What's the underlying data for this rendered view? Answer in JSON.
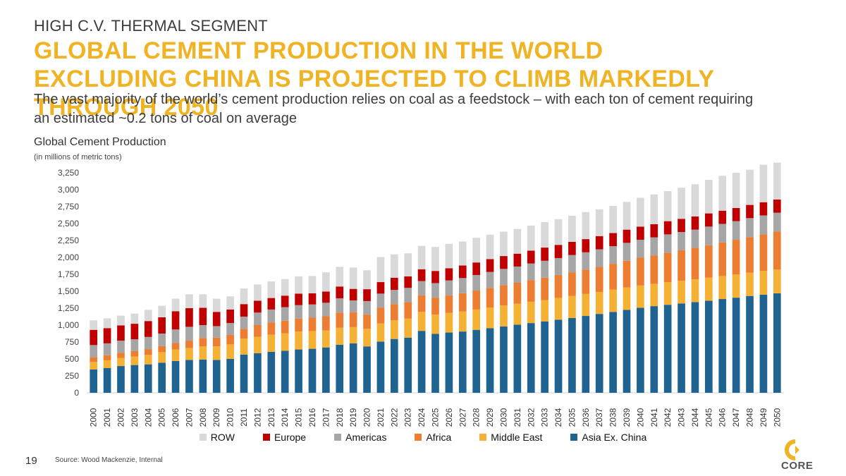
{
  "header": {
    "kicker": "HIGH C.V. THERMAL SEGMENT",
    "headline": "GLOBAL CEMENT PRODUCTION IN THE WORLD EXCLUDING CHINA IS PROJECTED TO CLIMB MARKEDLY THROUGH 2050",
    "subtitle": "The vast majority of the world’s cement production relies on coal as a feedstock – with each ton of cement requiring an estimated ~0.2 tons of coal on average"
  },
  "footer": {
    "page_number": "19",
    "source": "Source: Wood Mackenzie, Internal",
    "logo_text": "CORE"
  },
  "colors": {
    "accent": "#f0b323",
    "ROW": "#d9d9d9",
    "Europe": "#c00000",
    "Americas": "#a6a6a6",
    "Africa": "#ed7d31",
    "Middle East": "#f5b134",
    "Asia Ex. China": "#1f6391"
  },
  "chart_data": {
    "type": "bar",
    "stacked": true,
    "title": "Global Cement Production",
    "subtitle": "(in millions of metric tons)",
    "ylim": [
      0,
      3250
    ],
    "y_ticks": [
      0,
      250,
      500,
      750,
      1000,
      1250,
      1500,
      1750,
      2000,
      2250,
      2500,
      2750,
      3000,
      3250
    ],
    "y_tick_labels": [
      "0",
      "250",
      "500",
      "750",
      "1,000",
      "1,250",
      "1,500",
      "1,750",
      "2,000",
      "2,250",
      "2,500",
      "2,750",
      "3,000",
      "3,250"
    ],
    "grid": false,
    "legend_position": "bottom",
    "legend_order": [
      "ROW",
      "Europe",
      "Americas",
      "Africa",
      "Middle East",
      "Asia Ex. China"
    ],
    "categories": [
      "2000",
      "2001",
      "2002",
      "2003",
      "2004",
      "2005",
      "2006",
      "2007",
      "2008",
      "2009",
      "2010",
      "2011",
      "2012",
      "2013",
      "2014",
      "2015",
      "2016",
      "2017",
      "2018",
      "2019",
      "2020",
      "2021",
      "2022",
      "2023",
      "2024",
      "2025",
      "2026",
      "2027",
      "2028",
      "2029",
      "2030",
      "2031",
      "2032",
      "2033",
      "2034",
      "2035",
      "2036",
      "2037",
      "2038",
      "2039",
      "2040",
      "2041",
      "2042",
      "2043",
      "2044",
      "2045",
      "2046",
      "2047",
      "2048",
      "2049",
      "2050"
    ],
    "series": [
      {
        "name": "Asia Ex. China",
        "values": [
          345,
          365,
          395,
          410,
          420,
          445,
          470,
          485,
          490,
          485,
          500,
          565,
          585,
          605,
          620,
          640,
          650,
          670,
          710,
          730,
          685,
          755,
          795,
          815,
          915,
          870,
          890,
          905,
          930,
          955,
          980,
          1005,
          1030,
          1055,
          1080,
          1105,
          1135,
          1165,
          1195,
          1225,
          1255,
          1280,
          1300,
          1320,
          1340,
          1360,
          1385,
          1405,
          1430,
          1450,
          1470
        ]
      },
      {
        "name": "Middle East",
        "values": [
          110,
          115,
          120,
          125,
          140,
          155,
          170,
          175,
          195,
          200,
          215,
          235,
          240,
          255,
          260,
          265,
          260,
          250,
          250,
          240,
          260,
          270,
          275,
          280,
          280,
          285,
          290,
          295,
          300,
          305,
          310,
          310,
          315,
          315,
          320,
          325,
          325,
          325,
          330,
          330,
          330,
          330,
          335,
          335,
          335,
          340,
          340,
          345,
          345,
          350,
          350
        ]
      },
      {
        "name": "Africa",
        "values": [
          70,
          75,
          75,
          80,
          85,
          90,
          95,
          110,
          125,
          130,
          140,
          145,
          175,
          180,
          185,
          190,
          200,
          210,
          225,
          220,
          210,
          230,
          240,
          245,
          245,
          250,
          260,
          270,
          280,
          290,
          300,
          310,
          320,
          330,
          340,
          350,
          360,
          370,
          380,
          395,
          410,
          420,
          435,
          450,
          465,
          480,
          495,
          510,
          525,
          540,
          560
        ]
      },
      {
        "name": "Americas",
        "values": [
          180,
          175,
          180,
          175,
          180,
          185,
          200,
          205,
          190,
          170,
          175,
          180,
          185,
          190,
          200,
          200,
          195,
          200,
          210,
          175,
          200,
          210,
          210,
          210,
          210,
          215,
          220,
          225,
          230,
          235,
          240,
          240,
          245,
          250,
          250,
          255,
          255,
          260,
          260,
          265,
          265,
          265,
          270,
          270,
          270,
          275,
          275,
          275,
          280,
          280,
          280
        ]
      },
      {
        "name": "Europe",
        "values": [
          225,
          225,
          225,
          230,
          235,
          240,
          270,
          275,
          255,
          210,
          200,
          185,
          175,
          170,
          170,
          170,
          165,
          165,
          175,
          170,
          175,
          170,
          180,
          170,
          175,
          180,
          180,
          185,
          185,
          190,
          190,
          190,
          190,
          195,
          195,
          195,
          195,
          195,
          195,
          195,
          195,
          195,
          195,
          195,
          195,
          195,
          195,
          195,
          195,
          195,
          195
        ]
      },
      {
        "name": "ROW",
        "values": [
          140,
          145,
          145,
          150,
          165,
          170,
          185,
          205,
          200,
          195,
          195,
          230,
          240,
          245,
          245,
          255,
          255,
          285,
          290,
          315,
          280,
          370,
          345,
          340,
          345,
          355,
          360,
          355,
          365,
          360,
          360,
          365,
          370,
          375,
          380,
          385,
          400,
          395,
          400,
          410,
          425,
          440,
          445,
          460,
          475,
          495,
          515,
          520,
          520,
          555,
          545
        ]
      }
    ]
  }
}
